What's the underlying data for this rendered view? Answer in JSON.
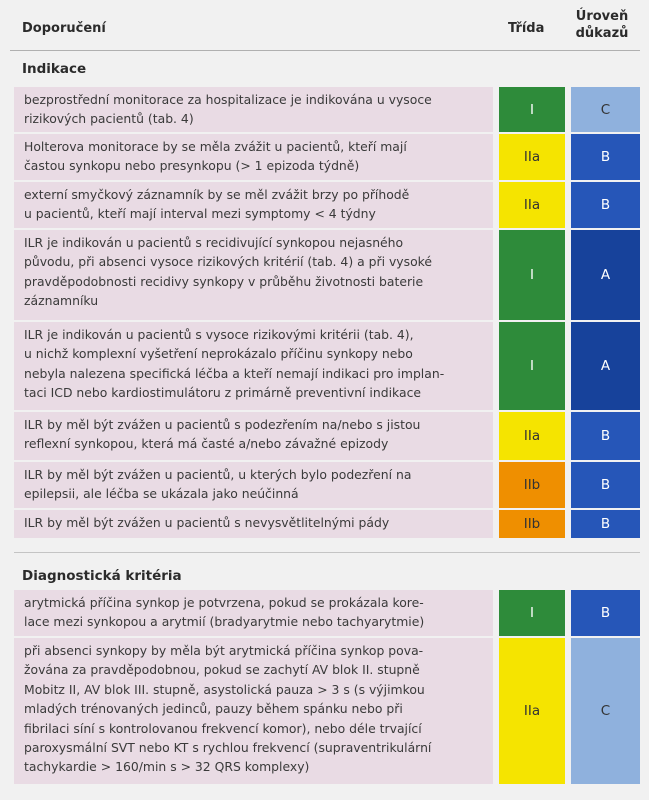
{
  "header": {
    "recommendations": "Doporučení",
    "class": "Třída",
    "level_line1": "Úroveň",
    "level_line2": "důkazů"
  },
  "sections": [
    {
      "title": "Indikace",
      "rows": [
        {
          "lines": [
            "bezprostřední monitorace za hospitalizace je indikována u vysoce",
            "rizikových pacientů (tab. 4)"
          ],
          "class": "I",
          "level": "C"
        },
        {
          "lines": [
            "Holterova monitorace by se měla zvážit u pacientů, kteří mají",
            "častou synkopu nebo presynkopu (> 1 epizoda týdně)"
          ],
          "class": "IIa",
          "level": "B"
        },
        {
          "lines": [
            "externí smyčkový záznamník by se měl zvážit brzy po příhodě",
            "u pacientů, kteří mají interval mezi symptomy  < 4 týdny"
          ],
          "class": "IIa",
          "level": "B"
        },
        {
          "lines": [
            "ILR je indikován u pacientů s recidivující synkopou nejasného",
            "původu, při absenci vysoce rizikových kritérií (tab. 4) a při vysoké",
            "pravděpodobnosti recidivy synkopy v průběhu životnosti baterie",
            "záznamníku"
          ],
          "class": "I",
          "level": "A"
        },
        {
          "lines": [
            "ILR je indikován u pacientů s vysoce rizikovými kritérii (tab. 4),",
            "u nichž komplexní vyšetření neprokázalo příčinu synkopy nebo",
            "nebyla nalezena specifická léčba a kteří nemají indikaci pro implan-",
            "taci ICD nebo kardiostimulátoru z primárně preventivní indikace"
          ],
          "class": "I",
          "level": "A"
        },
        {
          "lines": [
            "ILR by měl být zvážen u pacientů s podezřením na/nebo s jistou",
            "reflexní synkopou, která má časté a/nebo závažné epizody"
          ],
          "class": "IIa",
          "level": "B"
        },
        {
          "lines": [
            "ILR by měl být zvážen u pacientů, u kterých bylo podezření na",
            "epilepsii, ale léčba se ukázala jako neúčinná"
          ],
          "class": "IIb",
          "level": "B"
        },
        {
          "lines": [
            "ILR by měl být zvážen u pacientů s nevysvětlitelnými pády"
          ],
          "class": "IIb",
          "level": "B"
        }
      ]
    },
    {
      "title": "Diagnostická kritéria",
      "rows": [
        {
          "lines": [
            "arytmická příčina synkop je potvrzena, pokud se prokázala kore-",
            "lace mezi synkopou a arytmií (bradyarytmie nebo tachyarytmie)"
          ],
          "class": "I",
          "level": "B"
        },
        {
          "lines": [
            "při absenci synkopy by měla být arytmická příčina synkop pova-",
            "žována za pravděpodobnou, pokud se zachytí AV blok II. stupně",
            "Mobitz II, AV blok III. stupně, asystolická pauza > 3 s (s výjimkou",
            "mladých trénovaných jedinců, pauzy během spánku nebo při",
            "fibrilaci síní s kontrolovanou frekvencí komor), nebo déle trvající",
            "paroxysmální SVT nebo KT s rychlou frekvencí (supraventrikulární",
            "tachykardie > 160/min s > 32 QRS komplexy)"
          ],
          "class": "IIa",
          "level": "C"
        }
      ]
    }
  ],
  "colors": {
    "text_bg": "#e9dbe4",
    "class": {
      "I": "#2e8b3a",
      "IIa": "#f5e400",
      "IIb": "#ef8f00"
    },
    "class_text": {
      "I": "#ffffff",
      "IIa": "#333333",
      "IIb": "#333333"
    },
    "level": {
      "A": "#17429b",
      "B": "#2656b8",
      "C": "#8fb1dd"
    },
    "level_text": {
      "A": "#ffffff",
      "B": "#ffffff",
      "C": "#333333"
    }
  }
}
